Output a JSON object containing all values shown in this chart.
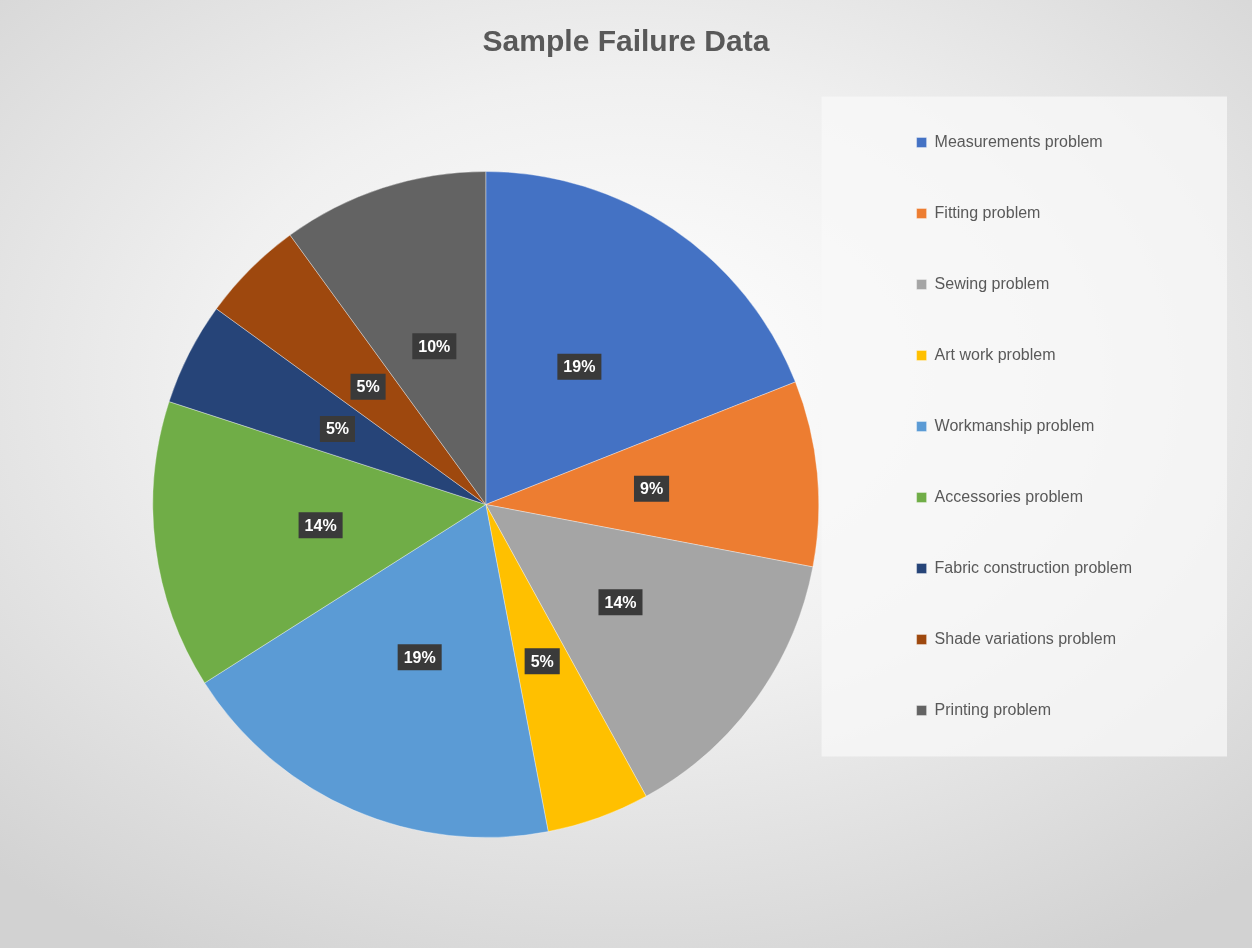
{
  "chart_data": {
    "type": "pie",
    "title": "Sample Failure Data",
    "categories": [
      "Measurements problem",
      "Fitting problem",
      "Sewing problem",
      "Art work problem",
      "Workmanship problem",
      "Accessories problem",
      "Fabric construction problem",
      "Shade variations problem",
      "Printing problem"
    ],
    "values": [
      19,
      9,
      14,
      5,
      19,
      14,
      5,
      5,
      10
    ],
    "colors": [
      "#4472c4",
      "#ed7d31",
      "#a5a5a5",
      "#ffc000",
      "#5b9bd5",
      "#70ad47",
      "#264478",
      "#9e480e",
      "#636363"
    ],
    "value_labels": [
      "19%",
      "9%",
      "14%",
      "5%",
      "19%",
      "14%",
      "5%",
      "5%",
      "10%"
    ],
    "legend": "right"
  }
}
